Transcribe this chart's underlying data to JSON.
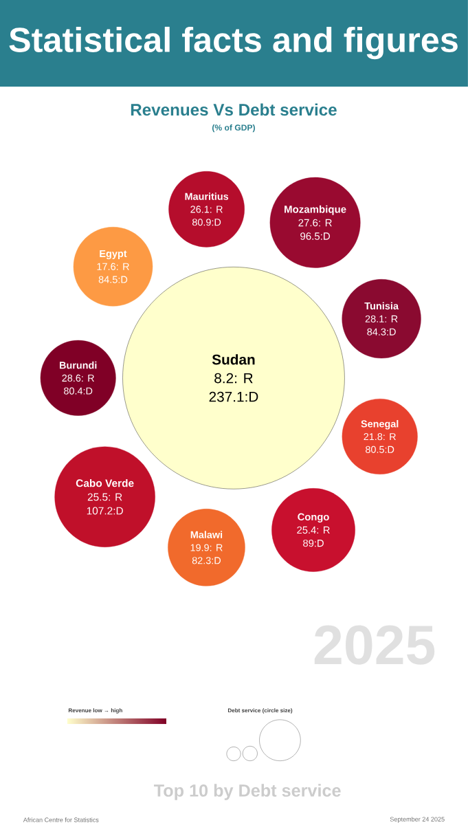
{
  "chart_data": {
    "type": "other",
    "title": "Revenues Vs Debt service",
    "subtitle": "(% of GDP)",
    "categories": [
      "Sudan",
      "Mauritius",
      "Mozambique",
      "Tunisia",
      "Senegal",
      "Congo",
      "Malawi",
      "Cabo Verde",
      "Burundi",
      "Egypt"
    ],
    "series": [
      {
        "colors": [
          "#ffffcc",
          "#b50d2c",
          "#990a30",
          "#8a0a30",
          "#e8412e",
          "#c8102e",
          "#f16a2c",
          "#c0102a",
          "#800026",
          "#fd9a44"
        ],
        "values": [
          8.2,
          26.1,
          27.6,
          28.1,
          21.8,
          25.4,
          19.9,
          25.5,
          28.6,
          17.6
        ],
        "value_labels": [
          "8.2: R",
          "26.1: R",
          "27.6: R",
          "28.1: R",
          "21.8: R",
          "25.4: R",
          "19.9: R",
          "25.5: R",
          "28.6: R",
          "17.6: R"
        ]
      },
      {
        "values": [
          237.1,
          80.9,
          96.5,
          84.3,
          80.5,
          89,
          82.3,
          107.2,
          80.4,
          84.5
        ],
        "value_labels": [
          "237.1:D",
          "80.9:D",
          "96.5:D",
          "84.3:D",
          "80.5:D",
          "89:D",
          "82.3:D",
          "107.2:D",
          "80.4:D",
          "84.5:D"
        ]
      }
    ],
    "clabel": "Revenue low → high",
    "legend_title": "Debt service (circle size)",
    "annotations": [
      "Statistical facts and figures",
      "2025",
      "Top 10 by Debt service",
      "African Centre for Statistics",
      "September  24 2025"
    ]
  }
}
